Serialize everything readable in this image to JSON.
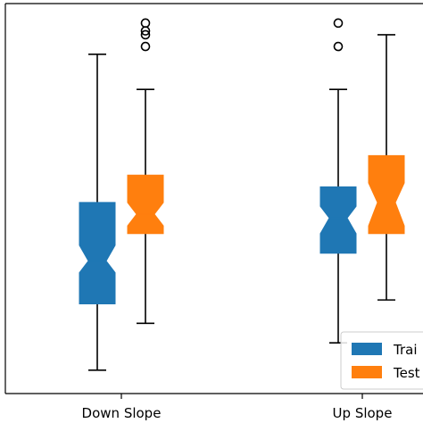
{
  "chart_data": {
    "type": "boxplot",
    "title": "",
    "xlabel": "",
    "ylabel": "",
    "notched": true,
    "ylim": [
      0,
      100
    ],
    "categories": [
      "Down Slope",
      "Up Slope"
    ],
    "series": [
      {
        "name": "Trai",
        "color": "#1f77b4",
        "boxes": [
          {
            "whislo": 6,
            "q1": 23,
            "med": 34,
            "q3": 49,
            "whishi": 87,
            "notch_lo": 31,
            "notch_hi": 38,
            "fliers": []
          },
          {
            "whislo": 13,
            "q1": 36,
            "med": 45,
            "q3": 53,
            "whishi": 78,
            "notch_lo": 41,
            "notch_hi": 48,
            "fliers": [
              95,
              89
            ]
          }
        ]
      },
      {
        "name": "Test",
        "color": "#ff7f0e",
        "boxes": [
          {
            "whislo": 18,
            "q1": 41,
            "med": 46,
            "q3": 56,
            "whishi": 78,
            "notch_lo": 43,
            "notch_hi": 49,
            "fliers": [
              89,
              92,
              93,
              95
            ]
          },
          {
            "whislo": 24,
            "q1": 41,
            "med": 49,
            "q3": 61,
            "whishi": 92,
            "notch_lo": 43,
            "notch_hi": 54,
            "fliers": []
          }
        ]
      }
    ],
    "legend": {
      "position": "bottom-right"
    }
  }
}
